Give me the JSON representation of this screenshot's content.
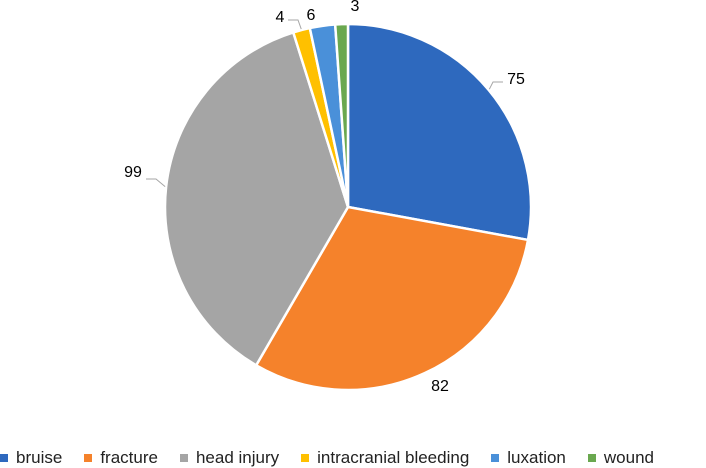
{
  "chart_data": {
    "type": "pie",
    "title": "",
    "categories": [
      "bruise",
      "fracture",
      "head injury",
      "intracranial bleeding",
      "luxation",
      "wound"
    ],
    "values": [
      75,
      82,
      99,
      4,
      6,
      3
    ],
    "colors": [
      "#2E69BE",
      "#F5822B",
      "#A5A5A5",
      "#FFC000",
      "#4A90D9",
      "#6AA84F"
    ],
    "data_labels": [
      "75",
      "82",
      "99",
      "4",
      "6",
      "3"
    ],
    "start_angle_deg": 0,
    "direction": "clockwise",
    "legend_position": "bottom"
  },
  "legend": {
    "items": [
      {
        "label": "bruise",
        "color": "#2E69BE"
      },
      {
        "label": "fracture",
        "color": "#F5822B"
      },
      {
        "label": "head injury",
        "color": "#A5A5A5"
      },
      {
        "label": "intracranial bleeding",
        "color": "#FFC000"
      },
      {
        "label": "luxation",
        "color": "#4A90D9"
      },
      {
        "label": "wound",
        "color": "#6AA84F"
      }
    ]
  }
}
